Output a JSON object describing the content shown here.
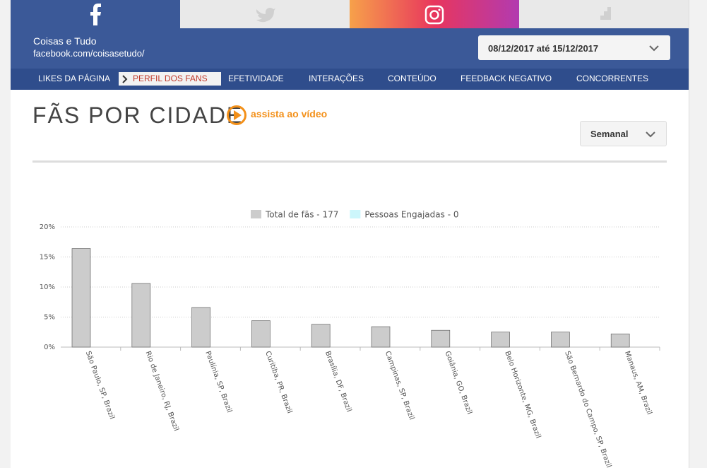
{
  "header": {
    "page_name": "Coisas e Tudo",
    "page_url": "facebook.com/coisasetudo/",
    "date_range": "08/12/2017 até 15/12/2017"
  },
  "nav": [
    "LIKES DA PÁGINA",
    "PERFIL DOS FANS",
    "EFETIVIDADE",
    "INTERAÇÕES",
    "CONTEÚDO",
    "FEEDBACK NEGATIVO",
    "CONCORRENTES"
  ],
  "section": {
    "title": "FÃS POR CIDADE",
    "video_link": "assista ao vídeo",
    "period": "Semanal"
  },
  "chart_data": {
    "type": "bar",
    "categories": [
      "São Paulo, SP, Brazil",
      "Rio de Janeiro, RJ, Brazil",
      "Paulínia, SP, Brazil",
      "Curitiba, PR, Brazil",
      "Brasília, DF, Brazil",
      "Campinas, SP, Brazil",
      "Goiânia, GO, Brazil",
      "Belo Horizonte, MG, Brazil",
      "São Bernardo do Campo, SP, Brazil",
      "Manaus, AM, Brazil"
    ],
    "series": [
      {
        "name": "Total de fãs - 177",
        "color": "#cccccc",
        "values": [
          16.4,
          10.6,
          6.6,
          4.4,
          3.8,
          3.4,
          2.8,
          2.5,
          2.5,
          2.2
        ]
      },
      {
        "name": "Pessoas Engajadas - 0",
        "color": "#ccf6fb",
        "values": [
          0,
          0,
          0,
          0,
          0,
          0,
          0,
          0,
          0,
          0
        ]
      }
    ],
    "ylim": [
      0,
      20
    ],
    "yticks": [
      {
        "value": 0,
        "label": "0%"
      },
      {
        "value": 5,
        "label": "5%"
      },
      {
        "value": 10,
        "label": "10%"
      },
      {
        "value": 15,
        "label": "15%"
      },
      {
        "value": 20,
        "label": "20%"
      }
    ],
    "grid": true,
    "legend": "top"
  }
}
